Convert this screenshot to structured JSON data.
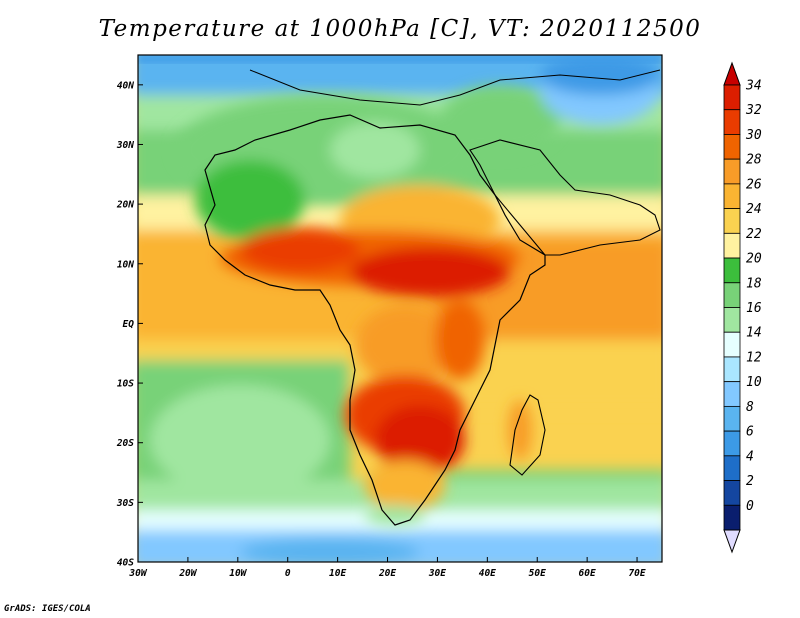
{
  "title": "Temperature at 1000hPa [C], VT: 2020112500",
  "credit": "GrADS: IGES/COLA",
  "map": {
    "projection": "latlon",
    "lon_range": [
      -30,
      75
    ],
    "lat_range": [
      -40,
      45
    ],
    "lat_ticks": [
      {
        "value": 40,
        "label": "40N"
      },
      {
        "value": 30,
        "label": "30N"
      },
      {
        "value": 20,
        "label": "20N"
      },
      {
        "value": 10,
        "label": "10N"
      },
      {
        "value": 0,
        "label": "EQ"
      },
      {
        "value": -10,
        "label": "10S"
      },
      {
        "value": -20,
        "label": "20S"
      },
      {
        "value": -30,
        "label": "30S"
      },
      {
        "value": -40,
        "label": "40S"
      }
    ],
    "lon_ticks": [
      {
        "value": -30,
        "label": "30W"
      },
      {
        "value": -20,
        "label": "20W"
      },
      {
        "value": -10,
        "label": "10W"
      },
      {
        "value": 0,
        "label": "0"
      },
      {
        "value": 10,
        "label": "10E"
      },
      {
        "value": 20,
        "label": "20E"
      },
      {
        "value": 30,
        "label": "30E"
      },
      {
        "value": 40,
        "label": "40E"
      },
      {
        "value": 50,
        "label": "50E"
      },
      {
        "value": 60,
        "label": "60E"
      },
      {
        "value": 70,
        "label": "70E"
      }
    ]
  },
  "colorbar": {
    "labels": [
      "34",
      "32",
      "30",
      "28",
      "26",
      "24",
      "22",
      "20",
      "18",
      "16",
      "14",
      "12",
      "10",
      "8",
      "6",
      "4",
      "2",
      "0"
    ],
    "colors": [
      "#dc1e00",
      "#ea3c00",
      "#f06400",
      "#f89c28",
      "#fab432",
      "#fad250",
      "#fff2a0",
      "#3cbe3c",
      "#78d278",
      "#a0e6a0",
      "#e6ffff",
      "#aae6ff",
      "#82c8ff",
      "#5ab4f0",
      "#3c9ae6",
      "#1e6ec8",
      "#1446a0",
      "#0a1e6e"
    ],
    "top_arrow_color": "#c80000",
    "bottom_arrow_color": "#e0dcff"
  }
}
